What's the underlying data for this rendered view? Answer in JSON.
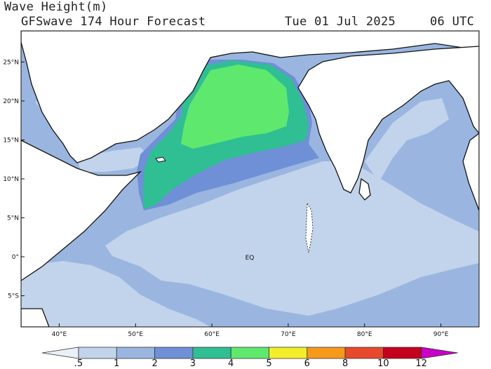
{
  "header": {
    "title": "Wave Height(m)",
    "subtitle": "GFSwave 174 Hour Forecast",
    "date": "Tue 01 Jul 2025",
    "utc": "06 UTC"
  },
  "map": {
    "region": "Arabian Sea / Indian Ocean",
    "lon_range": [
      35,
      95
    ],
    "lat_range": [
      -9,
      29
    ],
    "lon_ticks": [
      "40°E",
      "50°E",
      "60°E",
      "70°E",
      "80°E",
      "90°E"
    ],
    "lat_ticks": [
      "25°N",
      "20°N",
      "15°N",
      "10°N",
      "5°N",
      "0°",
      "5°S"
    ],
    "equator_label": "EQ",
    "land_color": "#ffffff"
  },
  "colorbar": {
    "labels": [
      ".5",
      "1",
      "2",
      "3",
      "4",
      "5",
      "6",
      "8",
      "10",
      "12"
    ],
    "colors": [
      "#eaf0f8",
      "#c2d4ec",
      "#9ab6e0",
      "#6f90d6",
      "#2fbf93",
      "#5fe86e",
      "#f4ee2a",
      "#f79a1c",
      "#e8492c",
      "#c3001e",
      "#c800c8"
    ]
  }
}
